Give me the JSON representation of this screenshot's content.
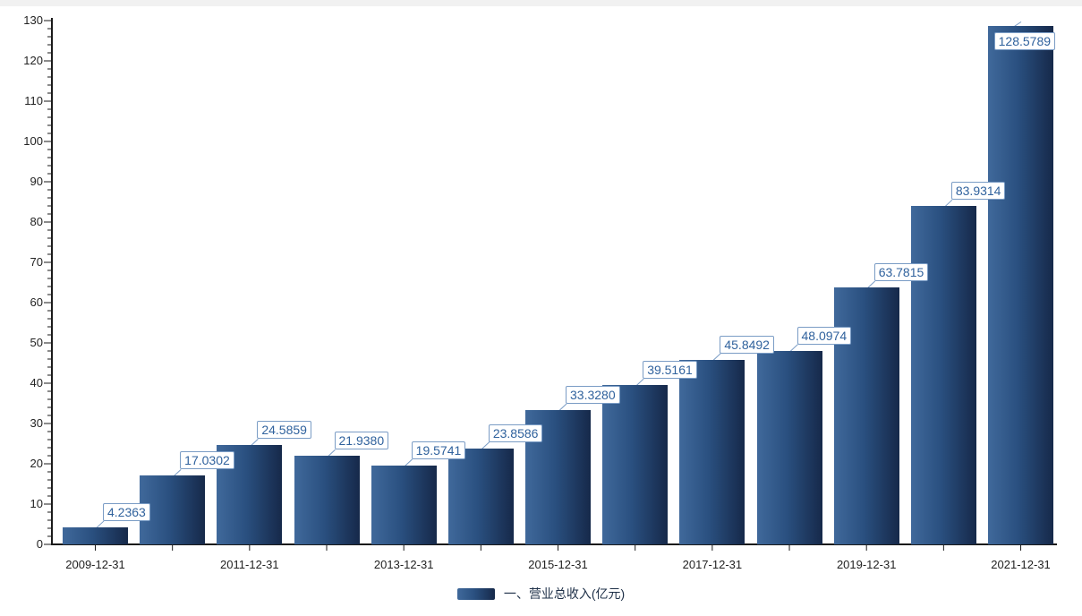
{
  "page": {
    "top_strip_color": "#f1f1f1",
    "background_color": "#ffffff"
  },
  "chart_data": {
    "type": "bar",
    "title": "",
    "xlabel": "",
    "ylabel": "",
    "series": [
      {
        "name": "一、营业总收入(亿元)",
        "values": [
          4.2363,
          17.0302,
          24.5859,
          21.938,
          19.5741,
          23.8586,
          33.328,
          39.5161,
          45.8492,
          48.0974,
          63.7815,
          83.9314,
          128.5789
        ],
        "value_labels": [
          "4.2363",
          "17.0302",
          "24.5859",
          "21.9380",
          "19.5741",
          "23.8586",
          "33.3280",
          "39.5161",
          "45.8492",
          "48.0974",
          "63.7815",
          "83.9314",
          "128.5789"
        ]
      }
    ],
    "x_tick_labels": [
      "2009-12-31",
      "2011-12-31",
      "2013-12-31",
      "2015-12-31",
      "2017-12-31",
      "2019-12-31",
      "2021-12-31"
    ],
    "x_tick_bar_indexes": [
      0,
      2,
      4,
      6,
      8,
      10,
      12
    ],
    "yaxis": {
      "min": 0,
      "max": 130,
      "major_step": 10,
      "minor_step": 2
    },
    "grid": false,
    "legend_position": "bottom",
    "style": {
      "bar_gradient": [
        "#40699b",
        "#2a5080",
        "#16294a"
      ],
      "axis_color": "#1a1a1a",
      "tick_label_color": "#222222",
      "value_label_text_color": "#30629d",
      "value_label_border_color": "#7a9cc5",
      "leader_line_color": "#7a9cc5",
      "legend_text_color": "#1e3048"
    }
  },
  "legend": {
    "label": "一、营业总收入(亿元)"
  }
}
